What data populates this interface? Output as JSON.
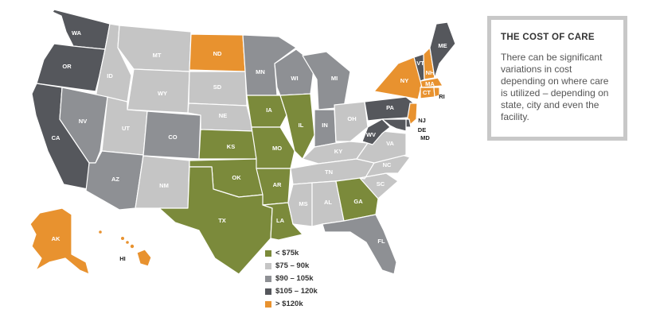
{
  "info": {
    "title": "THE COST OF CARE",
    "body": "There can be significant variations in cost depending on where care is utilized – depending on state, city and even the facility."
  },
  "legend": [
    {
      "label": "< $75k",
      "color": "#7b8a3b"
    },
    {
      "label": "$75 – 90k",
      "color": "#c5c5c5"
    },
    {
      "label": "$90 – 105k",
      "color": "#8e9094"
    },
    {
      "label": "$105 – 120k",
      "color": "#55575c"
    },
    {
      "label": "> $120k",
      "color": "#e8922f"
    }
  ],
  "states": {
    "WA": "WA",
    "OR": "OR",
    "CA": "CA",
    "ID": "ID",
    "NV": "NV",
    "MT": "MT",
    "WY": "WY",
    "UT": "UT",
    "AZ": "AZ",
    "CO": "CO",
    "NM": "NM",
    "ND": "ND",
    "SD": "SD",
    "NE": "NE",
    "KS": "KS",
    "OK": "OK",
    "TX": "TX",
    "MN": "MN",
    "IA": "IA",
    "MO": "MO",
    "AR": "AR",
    "LA": "LA",
    "WI": "WI",
    "IL": "IL",
    "MI": "MI",
    "IN": "IN",
    "OH": "OH",
    "KY": "KY",
    "TN": "TN",
    "MS": "MS",
    "AL": "AL",
    "GA": "GA",
    "FL": "FL",
    "SC": "SC",
    "NC": "NC",
    "VA": "VA",
    "WV": "WV",
    "PA": "PA",
    "NY": "NY",
    "VT": "VT",
    "NH": "NH",
    "ME": "ME",
    "MA": "MA",
    "CT": "CT",
    "RI": "RI",
    "NJ": "NJ",
    "DE": "DE",
    "MD": "MD",
    "AK": "AK",
    "HI": "HI"
  }
}
